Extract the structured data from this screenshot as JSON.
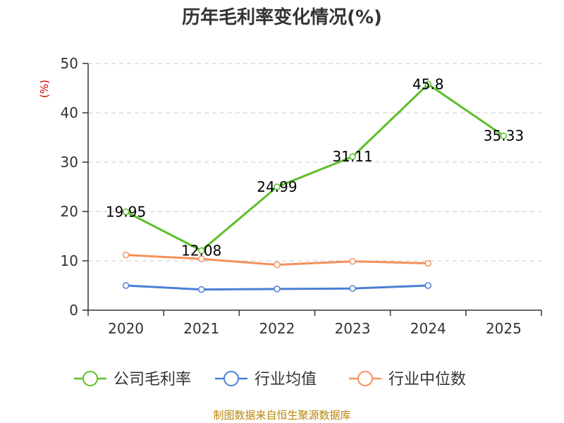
{
  "chart_data": {
    "type": "line",
    "title": "历年毛利率变化情况(%)",
    "ylabel": "(%)",
    "xlabel": "",
    "categories": [
      "2020",
      "2021",
      "2022",
      "2023",
      "2024",
      "2025"
    ],
    "ylim": [
      0,
      50
    ],
    "yticks": [
      0,
      10,
      20,
      30,
      40,
      50
    ],
    "grid": true,
    "legend_position": "bottom",
    "series": [
      {
        "name": "公司毛利率",
        "color": "#5cbf2a",
        "values": [
          19.95,
          12.08,
          24.99,
          31.11,
          45.8,
          35.33
        ],
        "labels": [
          "19.95",
          "12.08",
          "24.99",
          "31.11",
          "45.8",
          "35.33"
        ]
      },
      {
        "name": "行业均值",
        "color": "#4a7fd4",
        "values": [
          5.0,
          4.2,
          4.3,
          4.4,
          5.0,
          null
        ]
      },
      {
        "name": "行业中位数",
        "color": "#f5915a",
        "values": [
          11.2,
          10.4,
          9.2,
          9.9,
          9.5,
          null
        ]
      }
    ],
    "source": "制图数据来自恒生聚源数据库"
  }
}
